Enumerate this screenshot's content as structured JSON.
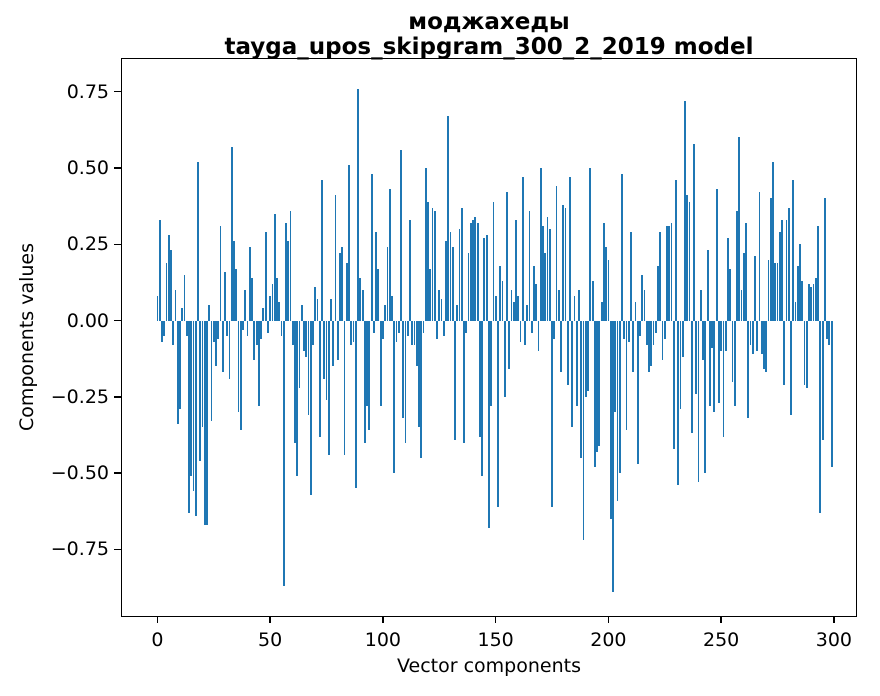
{
  "title": {
    "line1": "моджахеды",
    "line2": "tayga_upos_skipgram_300_2_2019 model"
  },
  "axes": {
    "xlabel": "Vector components",
    "ylabel": "Components values"
  },
  "chart_data": {
    "type": "bar",
    "title": "моджахеды\ntayga_upos_skipgram_300_2_2019 model",
    "xlabel": "Vector components",
    "ylabel": "Components values",
    "bar_color": "#1f77b4",
    "grid": false,
    "legend": false,
    "x_ticks": [
      0,
      50,
      100,
      150,
      200,
      250,
      300
    ],
    "y_ticks": [
      0.75,
      0.5,
      0.25,
      0.0,
      -0.25,
      -0.5,
      -0.75
    ],
    "xlim": [
      -15.7,
      309.8
    ],
    "ylim": [
      -0.968,
      0.857
    ],
    "bar_width_units": 0.8,
    "x_start": 0,
    "values": [
      0.08,
      0.33,
      -0.07,
      -0.05,
      0.19,
      0.28,
      0.23,
      -0.08,
      0.1,
      -0.34,
      -0.29,
      0.04,
      0.15,
      -0.05,
      -0.63,
      -0.51,
      -0.56,
      -0.64,
      0.52,
      -0.46,
      -0.35,
      -0.67,
      -0.67,
      0.05,
      -0.33,
      -0.07,
      -0.15,
      -0.06,
      0.31,
      -0.17,
      0.16,
      -0.05,
      -0.19,
      0.57,
      0.26,
      0.17,
      -0.3,
      -0.36,
      -0.03,
      0.1,
      -0.05,
      0.24,
      0.14,
      -0.13,
      -0.08,
      -0.28,
      -0.06,
      0.04,
      0.29,
      -0.04,
      0.08,
      0.12,
      0.35,
      0.14,
      0.06,
      -0.05,
      -0.87,
      0.32,
      0.26,
      0.36,
      -0.08,
      -0.4,
      -0.51,
      -0.22,
      0.05,
      -0.1,
      -0.12,
      -0.31,
      -0.57,
      -0.08,
      0.11,
      0.07,
      -0.38,
      0.46,
      -0.19,
      -0.26,
      -0.44,
      0.07,
      -0.15,
      0.41,
      -0.13,
      0.22,
      0.24,
      -0.44,
      0.19,
      0.51,
      -0.08,
      -0.07,
      -0.55,
      0.76,
      0.14,
      0.1,
      -0.4,
      -0.28,
      -0.36,
      0.48,
      -0.04,
      0.29,
      0.17,
      -0.28,
      -0.06,
      0.05,
      0.24,
      0.43,
      0.08,
      -0.5,
      -0.07,
      -0.04,
      0.56,
      -0.32,
      -0.4,
      -0.05,
      0.33,
      -0.08,
      -0.08,
      -0.15,
      -0.35,
      -0.45,
      -0.04,
      0.5,
      0.39,
      0.17,
      0.37,
      0.36,
      -0.06,
      0.1,
      0.07,
      -0.05,
      0.26,
      0.67,
      0.29,
      0.24,
      -0.39,
      0.05,
      0.3,
      0.37,
      -0.4,
      -0.04,
      0.22,
      0.32,
      0.33,
      0.34,
      0.32,
      -0.38,
      -0.51,
      0.27,
      0.28,
      -0.68,
      -0.28,
      0.39,
      0.08,
      -0.61,
      0.18,
      0.13,
      -0.25,
      0.42,
      -0.16,
      0.1,
      0.06,
      0.33,
      0.08,
      -0.07,
      0.47,
      -0.08,
      0.05,
      0.36,
      -0.04,
      0.18,
      0.12,
      -0.1,
      0.5,
      0.31,
      0.22,
      0.34,
      0.3,
      -0.61,
      -0.06,
      0.44,
      0.1,
      -0.17,
      0.38,
      0.37,
      -0.21,
      0.47,
      -0.35,
      0.08,
      -0.28,
      0.1,
      -0.45,
      -0.72,
      -0.25,
      -0.23,
      0.5,
      0.13,
      -0.48,
      -0.43,
      -0.41,
      0.06,
      0.32,
      0.24,
      0.2,
      -0.65,
      -0.89,
      -0.3,
      -0.59,
      -0.5,
      0.48,
      -0.06,
      -0.36,
      -0.07,
      0.29,
      -0.17,
      0.06,
      -0.47,
      -0.05,
      0.15,
      0.1,
      -0.08,
      -0.17,
      -0.15,
      -0.08,
      -0.04,
      0.18,
      0.29,
      -0.13,
      -0.06,
      0.31,
      0.31,
      0.32,
      -0.42,
      0.46,
      -0.54,
      -0.29,
      -0.12,
      0.72,
      0.41,
      0.39,
      -0.37,
      0.58,
      -0.24,
      -0.53,
      0.1,
      -0.13,
      -0.5,
      0.23,
      -0.28,
      -0.09,
      -0.3,
      0.43,
      -0.27,
      -0.1,
      -0.38,
      -0.1,
      0.27,
      0.17,
      -0.2,
      -0.28,
      0.36,
      0.6,
      0.1,
      0.22,
      0.32,
      -0.32,
      -0.08,
      -0.11,
      0.21,
      -0.1,
      0.42,
      -0.11,
      -0.16,
      -0.17,
      0.2,
      0.4,
      0.52,
      0.19,
      0.19,
      0.29,
      0.33,
      -0.21,
      0.33,
      0.37,
      -0.31,
      0.46,
      0.06,
      0.18,
      0.25,
      0.13,
      -0.21,
      -0.22,
      0.12,
      0.11,
      0.12,
      0.14,
      0.31,
      -0.63,
      -0.39,
      0.4,
      -0.06,
      -0.08,
      -0.48
    ]
  }
}
